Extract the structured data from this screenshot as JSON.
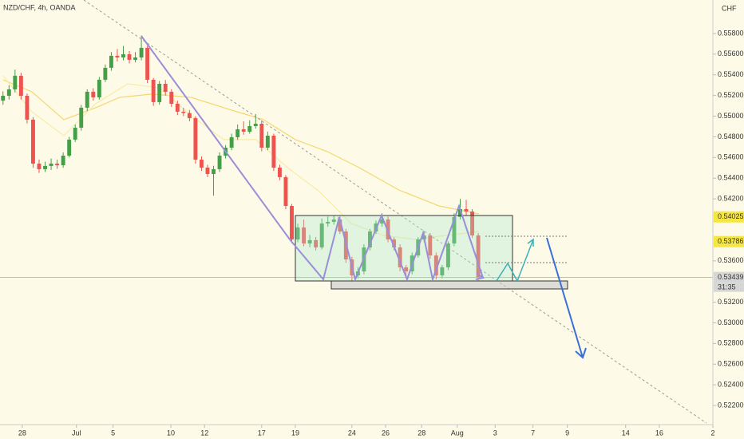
{
  "chart_data": {
    "type": "candlestick",
    "title": "NZD/CHF, 4h, OANDA",
    "y_axis_label": "CHF",
    "xlim": [
      -0.5,
      118
    ],
    "ylim": [
      0.52015,
      0.56124
    ],
    "xticks": [
      {
        "value": 3.2,
        "label": "28"
      },
      {
        "value": 12.2,
        "label": "Jul"
      },
      {
        "value": 18.3,
        "label": "5"
      },
      {
        "value": 27.9,
        "label": "10"
      },
      {
        "value": 33.5,
        "label": "12"
      },
      {
        "value": 43.0,
        "label": "17"
      },
      {
        "value": 48.6,
        "label": "19"
      },
      {
        "value": 58.0,
        "label": "24"
      },
      {
        "value": 63.6,
        "label": "26"
      },
      {
        "value": 69.6,
        "label": "28"
      },
      {
        "value": 75.5,
        "label": "Aug"
      },
      {
        "value": 81.8,
        "label": "3"
      },
      {
        "value": 88.1,
        "label": "7"
      },
      {
        "value": 93.8,
        "label": "9"
      },
      {
        "value": 103.5,
        "label": "14"
      },
      {
        "value": 109.1,
        "label": "16"
      },
      {
        "value": 118,
        "label": "2"
      }
    ],
    "yticks": [
      {
        "value": 0.558,
        "label": "0.55800"
      },
      {
        "value": 0.556,
        "label": "0.55600"
      },
      {
        "value": 0.554,
        "label": "0.55400"
      },
      {
        "value": 0.552,
        "label": "0.55200"
      },
      {
        "value": 0.55,
        "label": "0.55000"
      },
      {
        "value": 0.548,
        "label": "0.54800"
      },
      {
        "value": 0.546,
        "label": "0.54600"
      },
      {
        "value": 0.544,
        "label": "0.54400"
      },
      {
        "value": 0.542,
        "label": "0.54200"
      },
      {
        "value": 0.536,
        "label": "0.53600"
      },
      {
        "value": 0.532,
        "label": "0.53200"
      },
      {
        "value": 0.53,
        "label": "0.53000"
      },
      {
        "value": 0.528,
        "label": "0.52800"
      },
      {
        "value": 0.526,
        "label": "0.52600"
      },
      {
        "value": 0.524,
        "label": "0.52400"
      },
      {
        "value": 0.522,
        "label": "0.52200"
      }
    ],
    "candles": {
      "up_color": "#43a047",
      "down_color": "#ef5350",
      "open": [
        0.5515,
        0.55197,
        0.55259,
        0.55391,
        0.55197,
        0.54966,
        0.54541,
        0.54487,
        0.54518,
        0.54541,
        0.54525,
        0.54618,
        0.54773,
        0.54888,
        0.55082,
        0.55236,
        0.55182,
        0.55352,
        0.55468,
        0.55584,
        0.55568,
        0.55599,
        0.55545,
        0.55568,
        0.55661,
        0.55352,
        0.55136,
        0.55313,
        0.55236,
        0.5512,
        0.55043,
        0.5503,
        0.54981,
        0.54579,
        0.54502,
        0.5444,
        0.54487,
        0.54618,
        0.54695,
        0.54796,
        0.54873,
        0.5485,
        0.54904,
        0.54927,
        0.54695,
        0.54811,
        0.54502,
        0.5441,
        0.54131,
        0.53807,
        0.53923,
        0.53768,
        0.538,
        0.5373,
        0.53961,
        0.53977,
        0.54,
        0.53884,
        0.53614,
        0.53459,
        0.53498,
        0.5373,
        0.53884,
        0.53961,
        0.54,
        0.53807,
        0.5373,
        0.53537,
        0.53498,
        0.53652,
        0.53807,
        0.53846,
        0.53652,
        0.53459,
        0.53537,
        0.53768,
        0.54023,
        0.54101,
        0.54077,
        0.53846
      ],
      "high": [
        0.5524,
        0.553,
        0.5545,
        0.5542,
        0.5522,
        0.5499,
        0.5458,
        0.5456,
        0.5459,
        0.5458,
        0.5465,
        0.548,
        0.5492,
        0.5511,
        0.5526,
        0.5527,
        0.5538,
        0.555,
        0.5562,
        0.5565,
        0.5568,
        0.5563,
        0.5562,
        0.5578,
        0.5568,
        0.5537,
        0.5534,
        0.5535,
        0.5526,
        0.5515,
        0.5508,
        0.5506,
        0.55,
        0.5461,
        0.5453,
        0.5452,
        0.5465,
        0.5472,
        0.5483,
        0.5492,
        0.5495,
        0.5496,
        0.5502,
        0.5496,
        0.5485,
        0.5483,
        0.5453,
        0.5443,
        0.5415,
        0.5396,
        0.54,
        0.5385,
        0.5383,
        0.5401,
        0.5403,
        0.5404,
        0.5403,
        0.5391,
        0.5364,
        0.5354,
        0.5376,
        0.5391,
        0.5399,
        0.5406,
        0.5403,
        0.5383,
        0.5376,
        0.5356,
        0.5368,
        0.5383,
        0.5389,
        0.5387,
        0.5368,
        0.5356,
        0.5379,
        0.5406,
        0.542,
        0.5419,
        0.541,
        0.5387
      ],
      "low": [
        0.5511,
        0.5516,
        0.5523,
        0.5516,
        0.5493,
        0.545,
        0.5445,
        0.5446,
        0.5448,
        0.5449,
        0.545,
        0.546,
        0.5475,
        0.5486,
        0.5505,
        0.5515,
        0.5516,
        0.5533,
        0.5544,
        0.5553,
        0.5554,
        0.5551,
        0.5552,
        0.5554,
        0.5532,
        0.551,
        0.5511,
        0.552,
        0.5509,
        0.5501,
        0.55,
        0.5495,
        0.5454,
        0.5447,
        0.5441,
        0.5423,
        0.5446,
        0.5459,
        0.5467,
        0.5477,
        0.5482,
        0.5483,
        0.5488,
        0.5466,
        0.5467,
        0.5447,
        0.5438,
        0.541,
        0.5377,
        0.5378,
        0.5374,
        0.5373,
        0.537,
        0.5371,
        0.5393,
        0.5395,
        0.5386,
        0.5358,
        0.534,
        0.5343,
        0.5347,
        0.537,
        0.5386,
        0.5393,
        0.5378,
        0.537,
        0.535,
        0.5344,
        0.5347,
        0.5363,
        0.5378,
        0.5362,
        0.5342,
        0.5343,
        0.5351,
        0.5374,
        0.54,
        0.5404,
        0.5382,
        0.5341
      ],
      "close": [
        0.55197,
        0.55259,
        0.55391,
        0.55197,
        0.54966,
        0.54541,
        0.54487,
        0.54518,
        0.54541,
        0.54525,
        0.54618,
        0.54773,
        0.54888,
        0.55082,
        0.55236,
        0.55182,
        0.55352,
        0.55468,
        0.55584,
        0.55568,
        0.55599,
        0.55545,
        0.55568,
        0.55661,
        0.55352,
        0.55136,
        0.55313,
        0.55236,
        0.5512,
        0.55043,
        0.5503,
        0.54981,
        0.54579,
        0.54502,
        0.5444,
        0.54487,
        0.54618,
        0.54695,
        0.54796,
        0.54873,
        0.5485,
        0.54904,
        0.54927,
        0.54695,
        0.54811,
        0.54502,
        0.5441,
        0.54131,
        0.53807,
        0.53923,
        0.53768,
        0.538,
        0.5373,
        0.53961,
        0.53977,
        0.54,
        0.53884,
        0.53614,
        0.53459,
        0.53498,
        0.5373,
        0.53884,
        0.53961,
        0.54,
        0.53807,
        0.5373,
        0.53537,
        0.53498,
        0.53652,
        0.53807,
        0.53846,
        0.53652,
        0.53459,
        0.53537,
        0.53768,
        0.54023,
        0.54101,
        0.54077,
        0.53846,
        0.53439
      ]
    },
    "lines": [
      {
        "color": "#f5d76e",
        "x": [
          0,
          4.8,
          10.1,
          15.4,
          19.4,
          24.7,
          31.3,
          38,
          43.3,
          48.6,
          53.9,
          59.2,
          65.8,
          72.5,
          79.1
        ],
        "values": [
          0.55352,
          0.55236,
          0.54966,
          0.55082,
          0.55182,
          0.55213,
          0.55182,
          0.55058,
          0.54966,
          0.54773,
          0.54657,
          0.54502,
          0.54286,
          0.54131,
          0.54054
        ]
      },
      {
        "color": "#f9eaa6",
        "x": [
          0,
          4.8,
          10.1,
          15.4,
          20.7,
          26,
          31.3,
          36.7,
          42,
          47.3,
          52.6,
          57.9,
          63.2,
          68.5,
          73.8,
          79.1
        ],
        "values": [
          0.55391,
          0.55043,
          0.54811,
          0.5512,
          0.55313,
          0.55275,
          0.55004,
          0.54773,
          0.54773,
          0.54502,
          0.5427,
          0.53961,
          0.53846,
          0.53807,
          0.53846,
          0.53884
        ]
      }
    ],
    "price_labels": [
      {
        "value": 0.54025,
        "label": "0.54025",
        "color": "#f5e642"
      },
      {
        "value": 0.53786,
        "label": "0.53786",
        "color": "#f5e642"
      },
      {
        "value": 0.53439,
        "label": "0.53439",
        "color": "#d6d6d6"
      }
    ],
    "countdown": "31:35"
  }
}
